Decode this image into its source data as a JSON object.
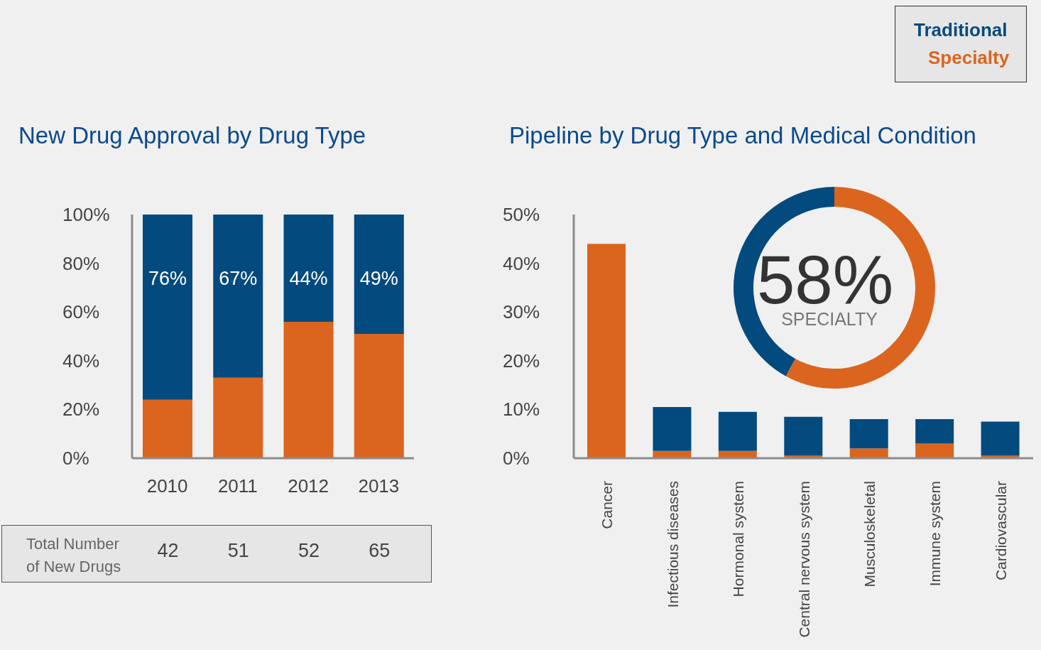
{
  "chart_data": [
    {
      "type": "bar",
      "title": "New Drug Approval by Drug Type",
      "categories": [
        "2010",
        "2011",
        "2012",
        "2013"
      ],
      "stacked": true,
      "ylim": [
        0,
        100
      ],
      "yticks": [
        {
          "value": 0,
          "label": "0%"
        },
        {
          "value": 20,
          "label": "20%"
        },
        {
          "value": 40,
          "label": "40%"
        },
        {
          "value": 60,
          "label": "60%"
        },
        {
          "value": 80,
          "label": "80%"
        },
        {
          "value": 100,
          "label": "100%"
        }
      ],
      "series": [
        {
          "color": "#db651e",
          "values": [
            24,
            33,
            56,
            51
          ]
        },
        {
          "color": "#034a7e",
          "values": [
            76,
            67,
            44,
            49
          ],
          "value_labels": [
            "76%",
            "67%",
            "44%",
            "49%"
          ]
        }
      ],
      "annotations": [
        "Total Number of New Drugs",
        "42",
        "51",
        "52",
        "65"
      ]
    },
    {
      "type": "bar",
      "title": "Pipeline by Drug Type and Medical Condition",
      "categories": [
        "Cancer",
        "Infectious diseases",
        "Hormonal system",
        "Central nervous system",
        "Musculoskeletal",
        "Immune system",
        "Cardiovascular"
      ],
      "stacked": true,
      "ylim": [
        0,
        50
      ],
      "yticks": [
        {
          "value": 0,
          "label": "0%"
        },
        {
          "value": 10,
          "label": "10%"
        },
        {
          "value": 20,
          "label": "20%"
        },
        {
          "value": 30,
          "label": "30%"
        },
        {
          "value": 40,
          "label": "40%"
        },
        {
          "value": 50,
          "label": "50%"
        }
      ],
      "legend": "top right",
      "series": [
        {
          "name": "Specialty",
          "color": "#db651e",
          "values": [
            44,
            1.5,
            1.5,
            0.5,
            2,
            3,
            0.5
          ]
        },
        {
          "name": "Traditional",
          "color": "#034a7e",
          "values": [
            0,
            9,
            8,
            8,
            6,
            5,
            7
          ]
        }
      ]
    },
    {
      "type": "donut",
      "categories": [
        "SPECIALTY",
        null
      ],
      "values": [
        58,
        42
      ],
      "colors": [
        "#db651e",
        "#034a7e"
      ],
      "value_labels": [
        "58%",
        null
      ]
    }
  ]
}
